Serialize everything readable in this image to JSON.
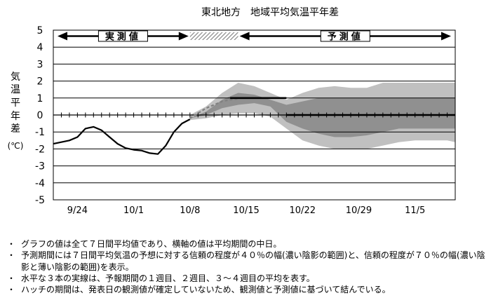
{
  "chart_data": {
    "type": "line",
    "title": "東北地方　地域平均気温平年差",
    "ylabel": "気温平年差（℃）",
    "ylabel_chars": [
      "気",
      "温",
      "平",
      "年",
      "差",
      "(℃)"
    ],
    "ylim": [
      -5,
      5
    ],
    "yticks": [
      "5",
      "4",
      "3",
      "2",
      "1",
      "0",
      "-1",
      "-2",
      "-3",
      "-4",
      "-5"
    ],
    "xticks": [
      "9/24",
      "10/1",
      "10/8",
      "10/15",
      "10/22",
      "10/29",
      "11/5"
    ],
    "observed_label": "実測値",
    "forecast_label": "予測値",
    "observed": {
      "x": [
        "9/21",
        "9/23",
        "9/24",
        "9/25",
        "9/26",
        "9/27",
        "9/28",
        "9/29",
        "9/30",
        "10/1",
        "10/2",
        "10/3",
        "10/4",
        "10/5",
        "10/6",
        "10/7",
        "10/8"
      ],
      "y": [
        -1.7,
        -1.5,
        -1.3,
        -0.8,
        -0.7,
        -0.9,
        -1.3,
        -1.7,
        -1.95,
        -2.05,
        -2.1,
        -2.25,
        -2.3,
        -1.8,
        -1.0,
        -0.5,
        -0.25
      ]
    },
    "hatch_period": [
      "10/8",
      "10/14"
    ],
    "hatch_line": {
      "x": [
        "10/8",
        "10/9",
        "10/10",
        "10/11",
        "10/12",
        "10/13",
        "10/14"
      ],
      "y": [
        -0.2,
        0.1,
        0.4,
        0.6,
        0.8,
        0.9,
        0.95
      ]
    },
    "forecast_means": [
      {
        "period": "1週目",
        "from": "10/13",
        "to": "10/20",
        "value": 1.0
      },
      {
        "period": "2週目",
        "from": "10/20",
        "to": "10/27",
        "value": 0.0
      },
      {
        "period": "3〜4週目",
        "from": "10/27",
        "to": "11/10",
        "value": 0.0
      }
    ],
    "band_x": [
      "10/8",
      "10/10",
      "10/12",
      "10/14",
      "10/16",
      "10/18",
      "10/20",
      "10/22",
      "10/24",
      "10/26",
      "10/28",
      "10/30",
      "11/1",
      "11/3",
      "11/5",
      "11/7",
      "11/9",
      "11/10"
    ],
    "band70_upper": [
      0.0,
      0.5,
      1.3,
      1.9,
      1.7,
      1.3,
      0.9,
      1.3,
      1.6,
      1.7,
      1.6,
      1.6,
      1.9,
      1.9,
      1.9,
      1.9,
      1.9,
      1.9
    ],
    "band70_lower": [
      -0.3,
      -0.2,
      0.0,
      0.1,
      0.1,
      -0.1,
      -0.8,
      -1.5,
      -1.8,
      -2.0,
      -2.0,
      -2.0,
      -1.8,
      -1.6,
      -1.5,
      -1.5,
      -1.5,
      -1.6
    ],
    "band40_upper": [
      -0.2,
      0.2,
      0.9,
      1.3,
      1.2,
      0.9,
      0.6,
      0.8,
      1.0,
      1.0,
      1.0,
      1.0,
      1.0,
      1.0,
      1.0,
      1.0,
      1.0,
      1.0
    ],
    "band40_lower": [
      -0.2,
      0.0,
      0.4,
      0.6,
      0.7,
      0.5,
      -0.4,
      -0.8,
      -1.1,
      -1.3,
      -1.3,
      -1.2,
      -1.0,
      -0.8,
      -0.8,
      -0.8,
      -0.8,
      -0.8
    ],
    "colors": {
      "band70": "#c0c0c0",
      "band40": "#909090",
      "line": "#000000",
      "hatch": "#808080"
    },
    "grid": true
  },
  "notes": [
    "グラフの値は全て７日間平均値であり、横軸の値は平均期間の中日。",
    "予測期間には７日間平均気温の予想に対する信頼の程度が４０％の幅(濃い陰影の範囲)と、信頼の程度が７０％の幅(濃い陰影と薄い陰影の範囲)を表示。",
    "水平な３本の実線は、予報期間の１週目、２週目、３～４週目の平均を表す。",
    "ハッチの期間は、発表日の観測値が確定していないため、観測値と予測値に基づいて結んでいる。"
  ],
  "bullet": "・"
}
